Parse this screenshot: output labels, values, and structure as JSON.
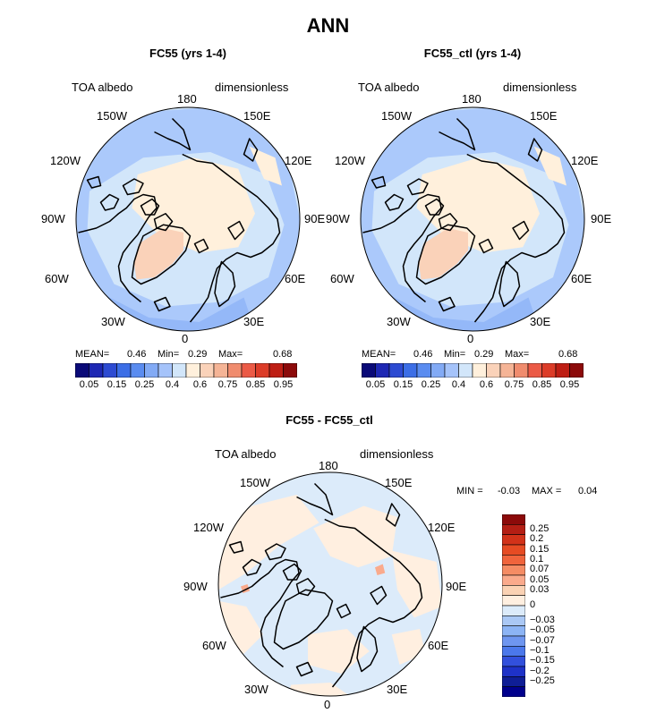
{
  "figure": {
    "title": "ANN"
  },
  "panels": [
    {
      "id": "left",
      "title": "FC55 (yrs 1-4)",
      "left_label": "TOA albedo",
      "right_label": "dimensionless",
      "stats": {
        "mean_label": "MEAN=",
        "mean": "0.46",
        "min_label": "Min=",
        "min": "0.29",
        "max_label": "Max=",
        "max": "0.68"
      }
    },
    {
      "id": "right",
      "title": "FC55_ctl (yrs 1-4)",
      "left_label": "TOA albedo",
      "right_label": "dimensionless",
      "stats": {
        "mean_label": "MEAN=",
        "mean": "0.46",
        "min_label": "Min=",
        "min": "0.29",
        "max_label": "Max=",
        "max": "0.68"
      }
    },
    {
      "id": "diff",
      "title": "FC55 - FC55_ctl",
      "left_label": "TOA albedo",
      "right_label": "dimensionless",
      "stats": {
        "min_label": "MIN =",
        "min": "-0.03",
        "max_label": "MAX =",
        "max": "0.04"
      }
    }
  ],
  "longitude_labels": [
    "180",
    "150E",
    "120E",
    "90E",
    "60E",
    "30E",
    "0",
    "30W",
    "60W",
    "90W",
    "120W",
    "150W"
  ],
  "colorbar_abs": {
    "colors": [
      "#0a0a78",
      "#1e28b4",
      "#2d4bd2",
      "#3c6ee6",
      "#5a8cf0",
      "#82aaf5",
      "#a5c3fa",
      "#d2e6fa",
      "#fff0dc",
      "#fad2b9",
      "#f5b496",
      "#f08c6e",
      "#eb5a46",
      "#dc3c28",
      "#be1e14",
      "#8c0a0a"
    ],
    "ticks": [
      "0.05",
      "0.15",
      "0.25",
      "0.4",
      "0.6",
      "0.75",
      "0.85",
      "0.95"
    ],
    "tick_boundaries": [
      1,
      3,
      5,
      7,
      9,
      11,
      13,
      15
    ]
  },
  "colorbar_diff": {
    "colors": [
      "#8c0a0a",
      "#b41e14",
      "#d23219",
      "#e64b23",
      "#f0643c",
      "#f58c64",
      "#faaa8c",
      "#fad2b4",
      "#ffefe0",
      "#dcebfa",
      "#aac8f5",
      "#8cb4f5",
      "#6e96f0",
      "#4b78eb",
      "#3250dc",
      "#1e32c8",
      "#0f1e96",
      "#00008c"
    ],
    "ticks": [
      "0.25",
      "0.2",
      "0.15",
      "0.1",
      "0.07",
      "0.05",
      "0.03",
      "0",
      "−0.03",
      "−0.05",
      "−0.07",
      "−0.1",
      "−0.15",
      "−0.2",
      "−0.25"
    ],
    "tick_boundaries": [
      1.5,
      2.5,
      3.5,
      4.5,
      5.5,
      6.5,
      7.5,
      9,
      10.5,
      11.5,
      12.5,
      13.5,
      14.5,
      15.5,
      16.5
    ]
  },
  "chart_data": [
    {
      "type": "heatmap",
      "projection": "north polar stereographic",
      "title": "FC55 (yrs 1-4)",
      "variable": "TOA albedo",
      "units": "dimensionless",
      "mean": 0.46,
      "min": 0.29,
      "max": 0.68,
      "levels": [
        0.05,
        0.1,
        0.15,
        0.2,
        0.25,
        0.3,
        0.35,
        0.4,
        0.5,
        0.6,
        0.65,
        0.7,
        0.75,
        0.8,
        0.85,
        0.9,
        0.95
      ]
    },
    {
      "type": "heatmap",
      "projection": "north polar stereographic",
      "title": "FC55_ctl (yrs 1-4)",
      "variable": "TOA albedo",
      "units": "dimensionless",
      "mean": 0.46,
      "min": 0.29,
      "max": 0.68,
      "levels": [
        0.05,
        0.1,
        0.15,
        0.2,
        0.25,
        0.3,
        0.35,
        0.4,
        0.5,
        0.6,
        0.65,
        0.7,
        0.75,
        0.8,
        0.85,
        0.9,
        0.95
      ]
    },
    {
      "type": "heatmap",
      "projection": "north polar stereographic",
      "title": "FC55 - FC55_ctl",
      "variable": "TOA albedo",
      "units": "dimensionless",
      "min": -0.03,
      "max": 0.04,
      "levels": [
        -0.25,
        -0.2,
        -0.15,
        -0.1,
        -0.07,
        -0.05,
        -0.03,
        0,
        0.03,
        0.05,
        0.07,
        0.1,
        0.15,
        0.2,
        0.25
      ]
    }
  ]
}
